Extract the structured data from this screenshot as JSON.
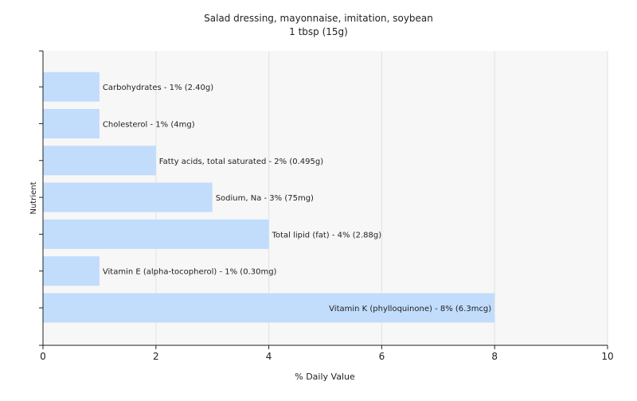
{
  "chart_data": {
    "type": "bar",
    "orientation": "horizontal",
    "title": "Salad dressing, mayonnaise, imitation, soybean",
    "subtitle": "1 tbsp (15g)",
    "xlabel": "% Daily Value",
    "ylabel": "Nutrient",
    "xlim": [
      0,
      10
    ],
    "x_ticks": [
      0,
      2,
      4,
      6,
      8,
      10
    ],
    "grid": true,
    "categories": [
      "Carbohydrates",
      "Cholesterol",
      "Fatty acids, total saturated",
      "Sodium, Na",
      "Total lipid (fat)",
      "Vitamin E (alpha-tocopherol)",
      "Vitamin K (phylloquinone)"
    ],
    "values": [
      1,
      1,
      2,
      3,
      4,
      1,
      8
    ],
    "data_labels": [
      "Carbohydrates - 1% (2.40g)",
      "Cholesterol - 1% (4mg)",
      "Fatty acids, total saturated - 2% (0.495g)",
      "Sodium, Na - 3% (75mg)",
      "Total lipid (fat) - 4% (2.88g)",
      "Vitamin E (alpha-tocopherol) - 1% (0.30mg)",
      "Vitamin K (phylloquinone) - 8% (6.3mcg)"
    ],
    "colors": {
      "bar": "#c2dcfc",
      "plot_background": "#f7f7f7",
      "grid": "#e2e2e2",
      "axis": "#222222"
    }
  }
}
